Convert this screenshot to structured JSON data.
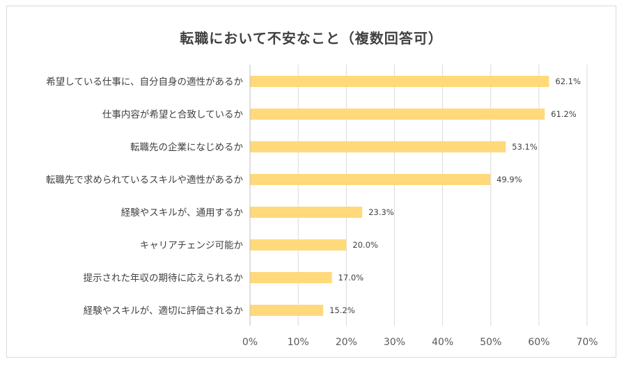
{
  "chart_data": {
    "type": "bar",
    "orientation": "horizontal",
    "title": "転職において不安なこと（複数回答可）",
    "categories": [
      "希望している仕事に、自分自身の適性があるか",
      "仕事内容が希望と合致しているか",
      "転職先の企業になじめるか",
      "転職先で求められているスキルや適性があるか",
      "経験やスキルが、通用するか",
      "キャリアチェンジ可能か",
      "提示された年収の期待に応えられるか",
      "経験やスキルが、適切に評価されるか"
    ],
    "values": [
      62.1,
      61.2,
      53.1,
      49.9,
      23.3,
      20.0,
      17.0,
      15.2
    ],
    "value_labels": [
      "62.1%",
      "61.2%",
      "53.1%",
      "49.9%",
      "23.3%",
      "20.0%",
      "17.0%",
      "15.2%"
    ],
    "xlim": [
      0,
      70
    ],
    "xticks": [
      0,
      10,
      20,
      30,
      40,
      50,
      60,
      70
    ],
    "xtick_labels": [
      "0%",
      "10%",
      "20%",
      "30%",
      "40%",
      "50%",
      "60%",
      "70%"
    ],
    "grid": true,
    "legend": false,
    "bar_color": "#FFD97A",
    "grid_color": "#D9D9D9"
  }
}
